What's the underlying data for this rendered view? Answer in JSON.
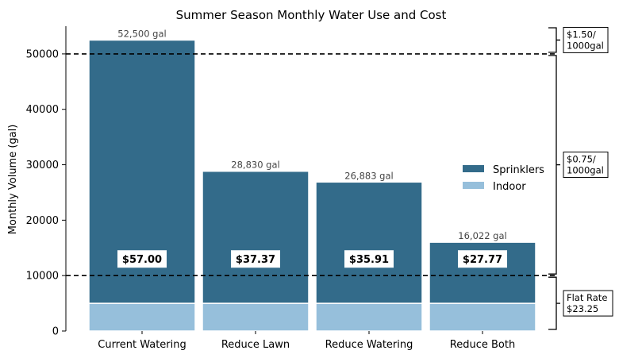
{
  "chart_data": {
    "type": "bar",
    "title": "Summer Season Monthly Water Use and Cost",
    "ylabel": "Monthly Volume (gal)",
    "xlabel": "",
    "ylim": [
      0,
      55000
    ],
    "yticks": [
      0,
      10000,
      20000,
      30000,
      40000,
      50000
    ],
    "stacked": true,
    "categories": [
      "Current Watering",
      "Reduce Lawn",
      "Reduce Watering",
      "Reduce Both"
    ],
    "series": [
      {
        "name": "Indoor",
        "color": "#96bfdb",
        "values": [
          5000,
          5000,
          5000,
          5000
        ]
      },
      {
        "name": "Sprinklers",
        "color": "#336b8a",
        "values": [
          47500,
          23830,
          21883,
          11022
        ]
      }
    ],
    "totals": [
      52500,
      28830,
      26883,
      16022
    ],
    "total_labels": [
      "52,500 gal",
      "28,830 gal",
      "26,883 gal",
      "16,022 gal"
    ],
    "cost_labels": [
      "$57.00",
      "$37.37",
      "$35.91",
      "$27.77"
    ],
    "cost_label_y": 13000,
    "thresholds": [
      10000,
      50000
    ],
    "tiers": [
      {
        "label": [
          "$1.50/",
          "1000gal"
        ],
        "from": 50000,
        "to": 55000
      },
      {
        "label": [
          "$0.75/",
          "1000gal"
        ],
        "from": 10000,
        "to": 50000
      },
      {
        "label": [
          "Flat Rate",
          "$23.25"
        ],
        "from": 0,
        "to": 10000
      }
    ],
    "legend": [
      "Sprinklers",
      "Indoor"
    ],
    "legend_position": "center-right"
  }
}
